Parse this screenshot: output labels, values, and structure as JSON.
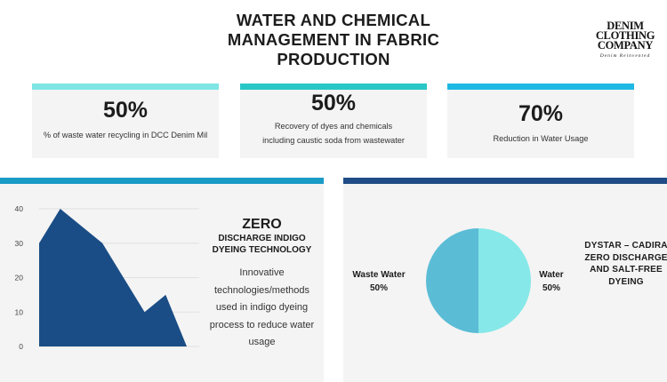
{
  "header": {
    "title_lines": [
      "WATER AND CHEMICAL",
      "MANAGEMENT IN FABRIC",
      "PRODUCTION"
    ]
  },
  "logo": {
    "lines": [
      "DENIM",
      "CLOTHING",
      "COMPANY"
    ],
    "tagline": "Denim Reinvented"
  },
  "stats": [
    {
      "value": "50%",
      "label": "% of waste water recycling in DCC Denim Mil",
      "bar_color": "#7fe5e5"
    },
    {
      "value": "50%",
      "label": "Recovery of dyes and chemicals including caustic soda from wastewater",
      "bar_color": "#29c6c6"
    },
    {
      "value": "70%",
      "label": "Reduction in Water Usage",
      "bar_color": "#1eb8e4"
    }
  ],
  "left_panel": {
    "bar_color": "#1a9bc6",
    "heading": "ZERO",
    "subheading": "DISCHARGE INDIGO DYEING TECHNOLOGY",
    "description": "Innovative technologies/methods used in indigo dyeing process to reduce water usage"
  },
  "right_panel": {
    "bar_color": "#1f4c86",
    "heading": "DYSTAR – CADIRA ZERO DISCHARGE AND SALT-FREE DYEING"
  },
  "chart_data": [
    {
      "type": "area",
      "x": [
        0,
        1,
        2,
        3,
        4,
        5,
        6,
        7
      ],
      "values": [
        30,
        40,
        35,
        30,
        20,
        10,
        15,
        0
      ],
      "ylim": [
        0,
        40
      ],
      "yticks": [
        0,
        10,
        20,
        30,
        40
      ],
      "grid": true,
      "color": "#1a4d85"
    },
    {
      "type": "pie",
      "slices": [
        {
          "label": "Waste Water",
          "value": 50,
          "display": "50%",
          "color": "#5bbcd6"
        },
        {
          "label": "Water",
          "value": 50,
          "display": "50%",
          "color": "#86e8e8"
        }
      ]
    }
  ]
}
